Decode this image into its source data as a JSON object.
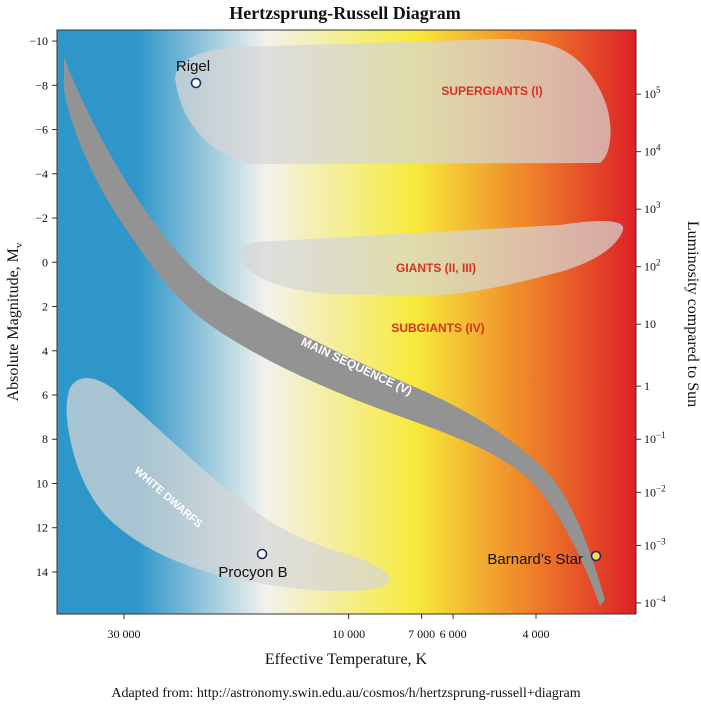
{
  "title": "Hertzsprung-Russell Diagram",
  "left_axis": {
    "label_main": "Absolute Magnitude, M",
    "label_sub": "v",
    "ticks": [
      -10,
      -8,
      -6,
      -4,
      -2,
      0,
      2,
      4,
      6,
      8,
      10,
      12,
      14
    ],
    "tick_labels": [
      "−10",
      "−8",
      "−6",
      "−4",
      "−2",
      "0",
      "2",
      "4",
      "6",
      "8",
      "10",
      "12",
      "14"
    ],
    "range": [
      -10.5,
      15.9
    ]
  },
  "right_axis": {
    "label": "Luminosity compared to Sun",
    "ticks": [
      {
        "base": "10",
        "exp": "5",
        "mag": -7.6
      },
      {
        "base": "10",
        "exp": "4",
        "mag": -5.0
      },
      {
        "base": "10",
        "exp": "3",
        "mag": -2.4
      },
      {
        "base": "10",
        "exp": "2",
        "mag": 0.2
      },
      {
        "base": "10",
        "exp": "",
        "mag": 2.8
      },
      {
        "base": "1",
        "exp": "",
        "mag": 5.6
      },
      {
        "base": "10",
        "exp": "−1",
        "mag": 8.0
      },
      {
        "base": "10",
        "exp": "−2",
        "mag": 10.4
      },
      {
        "base": "10",
        "exp": "−3",
        "mag": 12.8
      },
      {
        "base": "10",
        "exp": "−4",
        "mag": 15.4
      }
    ]
  },
  "bottom_axis": {
    "label": "Effective Temperature, K",
    "ticks": [
      {
        "label": "30 000",
        "temp": 30000
      },
      {
        "label": "10 000",
        "temp": 10000
      },
      {
        "label": "7 000",
        "temp": 7000
      },
      {
        "label": "6 000",
        "temp": 6000
      },
      {
        "label": "4 000",
        "temp": 4000
      }
    ]
  },
  "regions": {
    "supergiants": "SUPERGIANTS (I)",
    "giants": "GIANTS (II, III)",
    "subgiants": "SUBGIANTS (IV)",
    "main_sequence": "MAIN SEQUENCE (V)",
    "white_dwarfs": "WHITE DWARFS"
  },
  "stars": [
    {
      "name": "Rigel",
      "mag": -8.0,
      "color": "#ffffff"
    },
    {
      "name": "Procyon B",
      "mag": 13.1,
      "color": "#ffffff"
    },
    {
      "name": "Barnard’s Star",
      "mag": 13.2,
      "color": "#ffd84a"
    }
  ],
  "colors": {
    "hot": "#2f96c9",
    "white": "#f2f2ee",
    "yellow": "#f7ea3a",
    "orange": "#f08a2a",
    "cool": "#dd2026",
    "region_text": "#d93025",
    "band": "#939393"
  },
  "credit": "Adapted from: http://astronomy.swin.edu.au/cosmos/h/hertzsprung-russell+diagram"
}
